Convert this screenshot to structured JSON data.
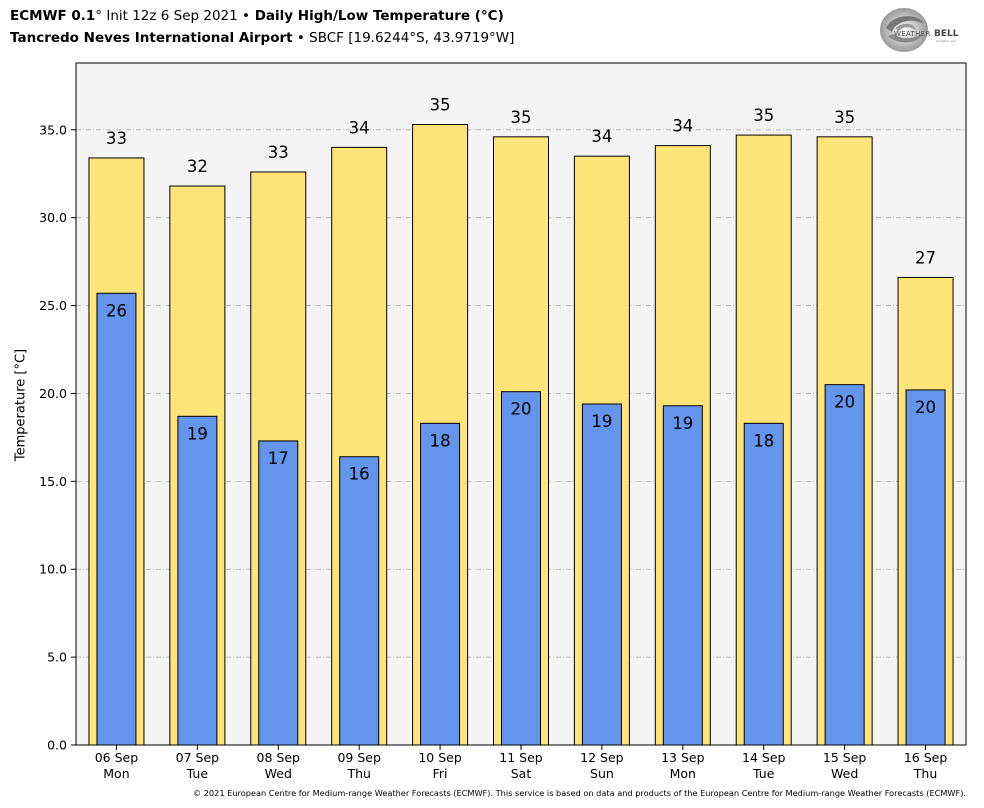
{
  "header": {
    "line1": {
      "model": "ECMWF 0.1",
      "model_deg": "°",
      "init": " Init 12z 6 Sep 2021 ",
      "sep": "•",
      "product": " Daily High/Low Temperature (°C)"
    },
    "line2": {
      "station": "Tancredo Neves International Airport",
      "sep": " • ",
      "detail": "SBCF [19.6244°S, 43.9719°W]"
    }
  },
  "logo": {
    "text_top": "WEATHER",
    "text_bell": "BELL",
    "tagline": "Analytics LLC",
    "icon": "weatherbell-swirl-icon"
  },
  "footer": "© 2021 European Centre for Medium-range Weather Forecasts (ECMWF). This service is based on data and products of the European Centre for Medium-range Weather Forecasts (ECMWF).",
  "colors": {
    "high": "#FFE47A",
    "low": "#6495ED",
    "plot_bg": "#F4F4F4",
    "grid": "#B0B0B0"
  },
  "chart_data": {
    "type": "bar",
    "ylabel": "Temperature [°C]",
    "ylim": [
      0,
      38.8
    ],
    "yticks": [
      0,
      5,
      10,
      15,
      20,
      25,
      30,
      35
    ],
    "ytick_labels": [
      "0.0",
      "5.0",
      "10.0",
      "15.0",
      "20.0",
      "25.0",
      "30.0",
      "35.0"
    ],
    "grid": true,
    "categories": [
      [
        "06 Sep",
        "Mon"
      ],
      [
        "07 Sep",
        "Tue"
      ],
      [
        "08 Sep",
        "Wed"
      ],
      [
        "09 Sep",
        "Thu"
      ],
      [
        "10 Sep",
        "Fri"
      ],
      [
        "11 Sep",
        "Sat"
      ],
      [
        "12 Sep",
        "Sun"
      ],
      [
        "13 Sep",
        "Mon"
      ],
      [
        "14 Sep",
        "Tue"
      ],
      [
        "15 Sep",
        "Wed"
      ],
      [
        "16 Sep",
        "Thu"
      ]
    ],
    "series": [
      {
        "values": [
          33.4,
          31.8,
          32.6,
          34.0,
          35.3,
          34.6,
          33.5,
          34.1,
          34.7,
          34.6,
          26.6
        ],
        "labels": [
          "33",
          "32",
          "33",
          "34",
          "35",
          "35",
          "34",
          "34",
          "35",
          "35",
          "27"
        ]
      },
      {
        "values": [
          25.7,
          18.7,
          17.3,
          16.4,
          18.3,
          20.1,
          19.4,
          19.3,
          18.3,
          20.5,
          20.2
        ],
        "labels": [
          "26",
          "19",
          "17",
          "16",
          "18",
          "20",
          "19",
          "19",
          "18",
          "20",
          "20"
        ]
      }
    ]
  }
}
